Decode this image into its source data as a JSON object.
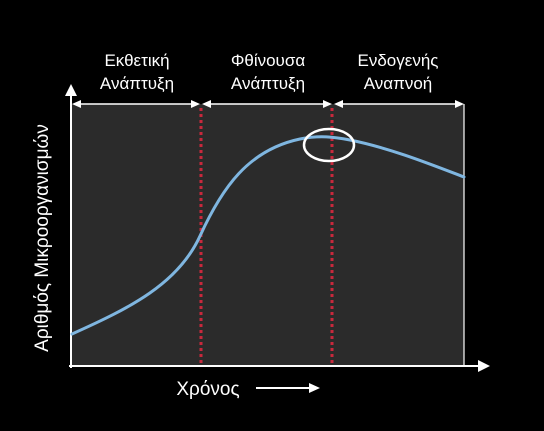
{
  "phases": [
    {
      "line1": "Εκθετική",
      "line2": "Ανάπτυξη"
    },
    {
      "line1": "Φθίνουσα",
      "line2": "Ανάπτυξη"
    },
    {
      "line1": "Ενδογενής",
      "line2": "Αναπνοή"
    }
  ],
  "axes": {
    "y_label": "Αριθμός Μικροοργανισμών",
    "x_label": "Χρόνος"
  },
  "colors": {
    "background": "#000000",
    "plot_area": "#2b2b2b",
    "curve": "#7fb6e0",
    "divider": "#c8283c",
    "axis": "#ffffff",
    "highlight": "#ffffff"
  }
}
